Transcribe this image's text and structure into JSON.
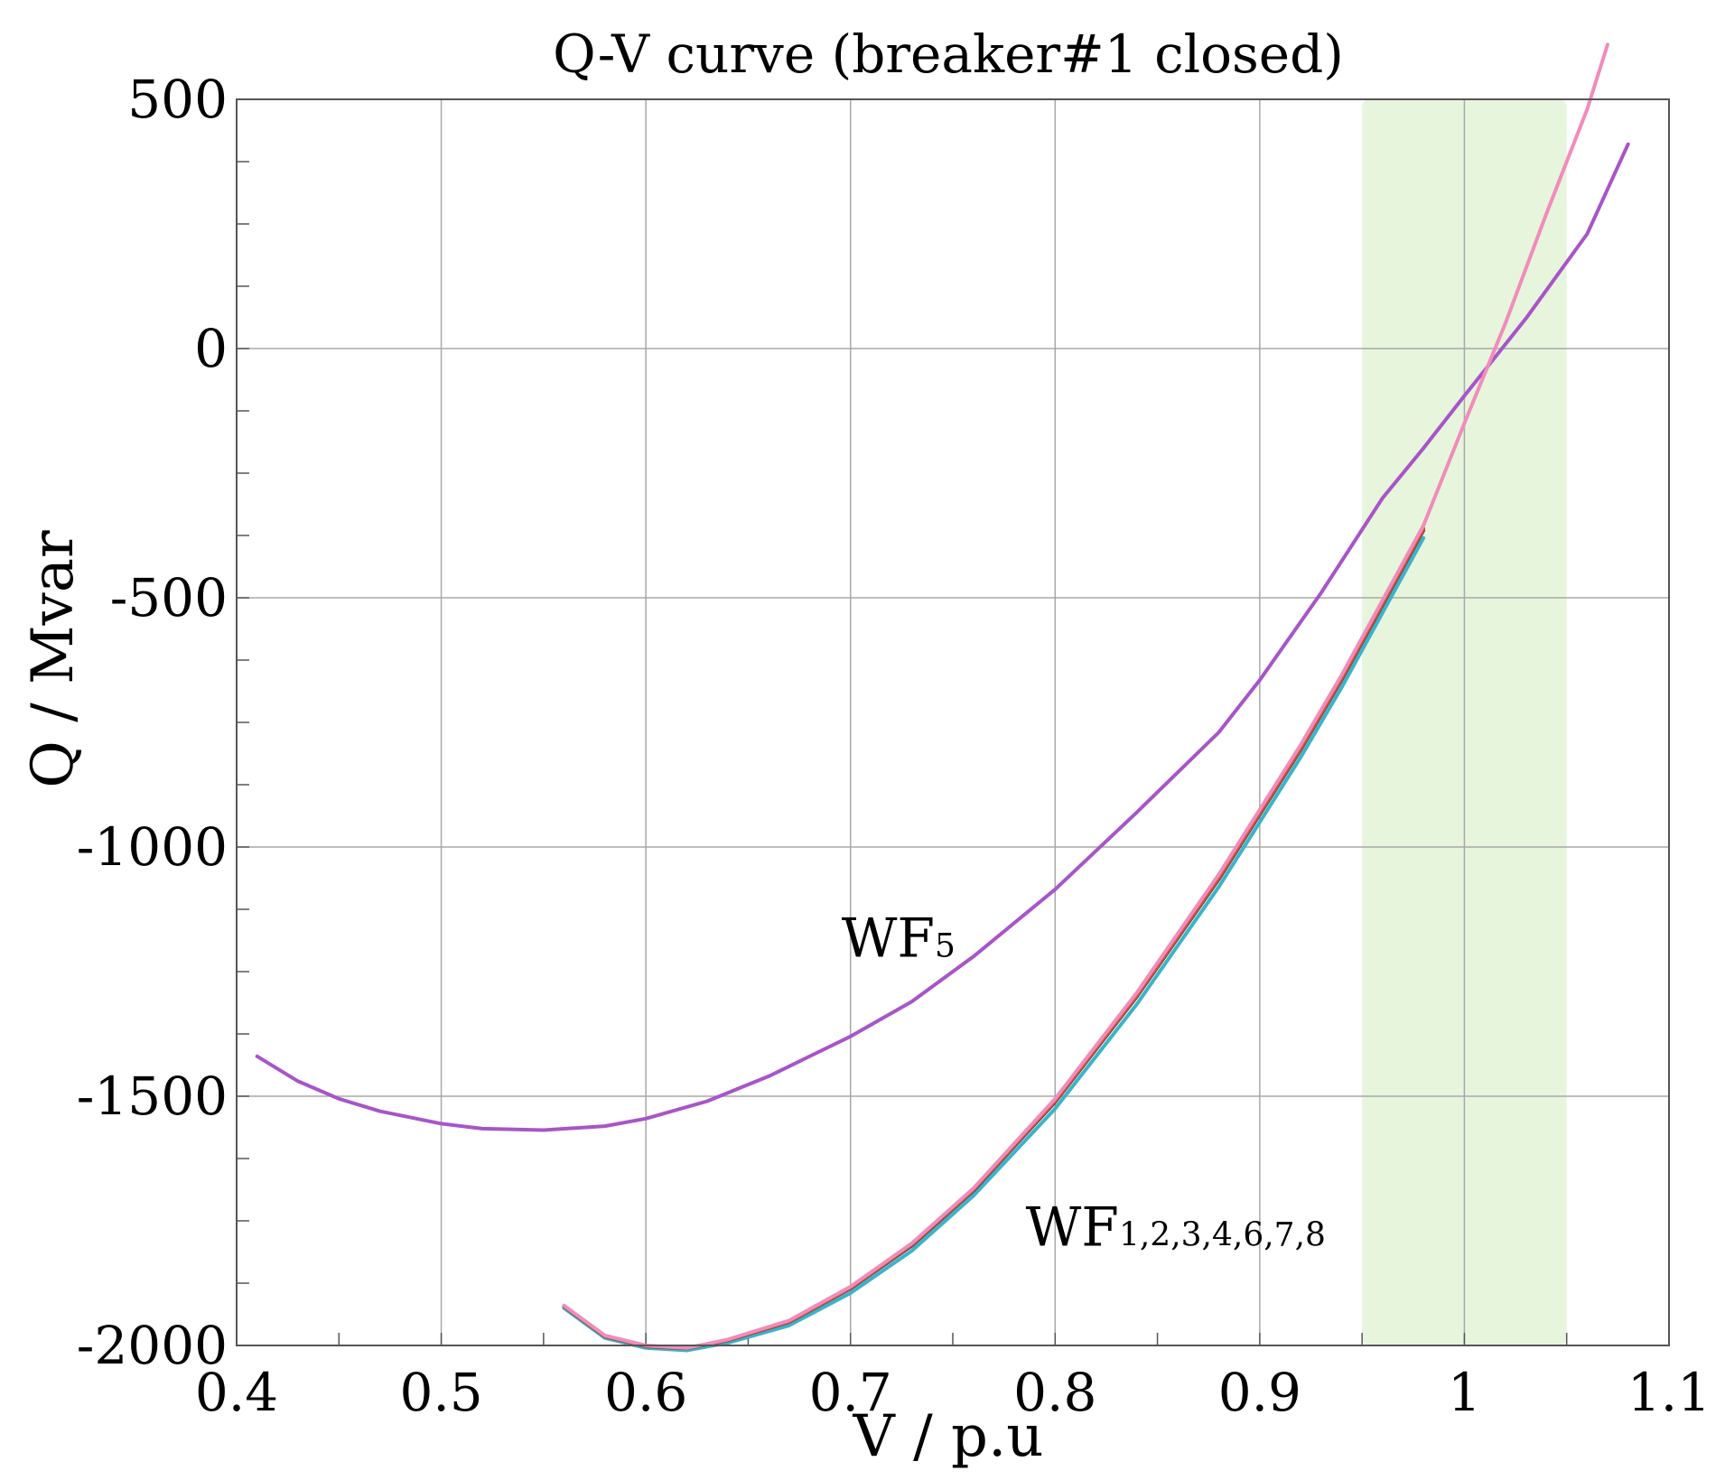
{
  "chart_data": {
    "type": "line",
    "title": "Q-V curve (breaker#1 closed)",
    "xlabel": "V / p.u",
    "ylabel": "Q / Mvar",
    "xlim": [
      0.4,
      1.1
    ],
    "ylim": [
      -2000,
      500
    ],
    "x_ticks": [
      {
        "value": 0.4,
        "label": "0.4"
      },
      {
        "value": 0.5,
        "label": "0.5"
      },
      {
        "value": 0.6,
        "label": "0.6"
      },
      {
        "value": 0.7,
        "label": "0.7"
      },
      {
        "value": 0.8,
        "label": "0.8"
      },
      {
        "value": 0.9,
        "label": "0.9"
      },
      {
        "value": 1.0,
        "label": "1"
      },
      {
        "value": 1.1,
        "label": "1.1"
      }
    ],
    "y_ticks": [
      {
        "value": 500,
        "label": "500"
      },
      {
        "value": 0,
        "label": "0"
      },
      {
        "value": -500,
        "label": "-500"
      },
      {
        "value": -1000,
        "label": "-1000"
      },
      {
        "value": -1500,
        "label": "-1500"
      },
      {
        "value": -2000,
        "label": "-2000"
      }
    ],
    "grid": true,
    "highlight_band": {
      "x_range": [
        0.95,
        1.05
      ],
      "color": "#e6f5dc"
    },
    "annotations": [
      {
        "main": "WF",
        "sub": "5",
        "x": 0.7,
        "y": -1220
      },
      {
        "main": "WF",
        "sub": "1,2,3,4,6,7,8",
        "x": 0.79,
        "y": -1800
      }
    ],
    "series": [
      {
        "color": "#a855c8",
        "x": [
          0.41,
          0.43,
          0.45,
          0.47,
          0.5,
          0.52,
          0.55,
          0.58,
          0.6,
          0.63,
          0.66,
          0.7,
          0.73,
          0.76,
          0.8,
          0.84,
          0.88,
          0.9,
          0.93,
          0.96,
          0.98,
          1.0,
          1.03,
          1.06,
          1.08
        ],
        "y": [
          -1420,
          -1470,
          -1505,
          -1530,
          -1555,
          -1565,
          -1568,
          -1560,
          -1545,
          -1510,
          -1460,
          -1380,
          -1310,
          -1220,
          -1085,
          -930,
          -770,
          -665,
          -490,
          -300,
          -200,
          -95,
          60,
          230,
          410
        ]
      },
      {
        "color": "#3bb3c9",
        "x": [
          0.56,
          0.58,
          0.6,
          0.62,
          0.64,
          0.67,
          0.7,
          0.73,
          0.76,
          0.8,
          0.84,
          0.88,
          0.9,
          0.92,
          0.94,
          0.96,
          0.98
        ],
        "y": [
          -1925,
          -1985,
          -2005,
          -2010,
          -1995,
          -1960,
          -1895,
          -1810,
          -1700,
          -1525,
          -1315,
          -1080,
          -950,
          -820,
          -680,
          -530,
          -380
        ]
      },
      {
        "color": "#555555",
        "x": [
          0.56,
          0.58,
          0.6,
          0.62,
          0.64,
          0.67,
          0.7,
          0.73,
          0.76,
          0.8,
          0.84,
          0.88,
          0.9,
          0.92,
          0.94,
          0.96,
          0.98
        ],
        "y": [
          -1922,
          -1982,
          -2002,
          -2006,
          -1990,
          -1953,
          -1886,
          -1800,
          -1690,
          -1512,
          -1300,
          -1065,
          -935,
          -805,
          -665,
          -515,
          -365
        ]
      },
      {
        "color": "#e34a33",
        "x": [
          0.56,
          0.58,
          0.6,
          0.62,
          0.64,
          0.67,
          0.7,
          0.73,
          0.76,
          0.8,
          0.84,
          0.88,
          0.9,
          0.92,
          0.94,
          0.96,
          0.98
        ],
        "y": [
          -1921,
          -1981,
          -2001,
          -2005,
          -1989,
          -1952,
          -1884,
          -1797,
          -1687,
          -1509,
          -1297,
          -1061,
          -931,
          -801,
          -661,
          -511,
          -361
        ]
      },
      {
        "color": "#f08cbc",
        "x": [
          0.56,
          0.58,
          0.6,
          0.62,
          0.64,
          0.67,
          0.7,
          0.73,
          0.76,
          0.8,
          0.84,
          0.88,
          0.9,
          0.92,
          0.94,
          0.96,
          0.98,
          1.0,
          1.02,
          1.04,
          1.06,
          1.07
        ],
        "y": [
          -1920,
          -1980,
          -2000,
          -2005,
          -1988,
          -1950,
          -1882,
          -1795,
          -1685,
          -1505,
          -1292,
          -1055,
          -925,
          -795,
          -655,
          -505,
          -355,
          -150,
          50,
          270,
          480,
          610
        ]
      }
    ]
  }
}
